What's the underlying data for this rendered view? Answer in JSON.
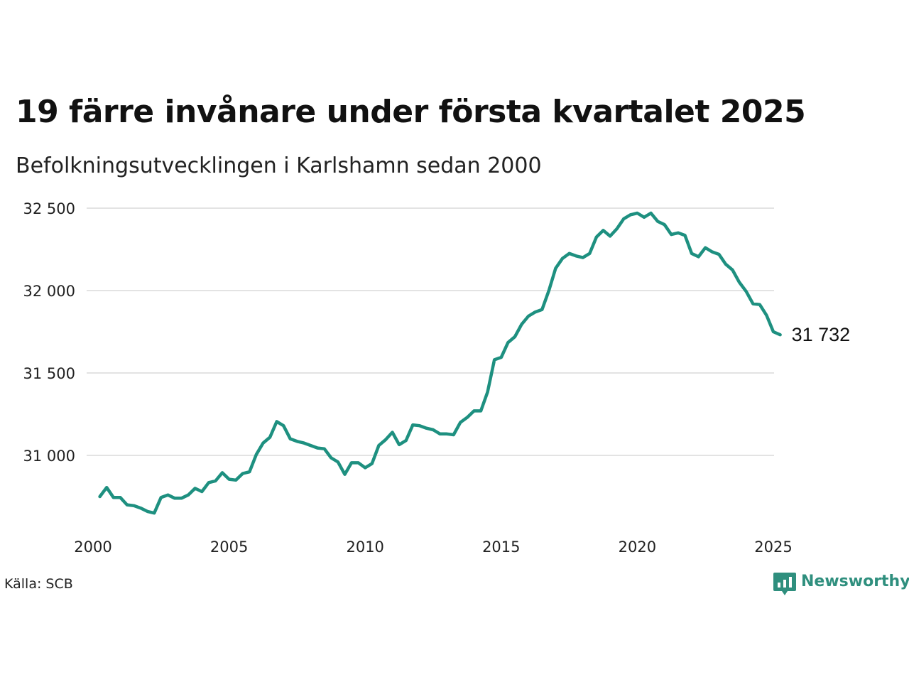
{
  "header": {
    "title": "19 färre invånare under första kvartalet 2025",
    "subtitle": "Befolkningsutvecklingen i Karlshamn sedan 2000"
  },
  "footer": {
    "source": "Källa: SCB",
    "brand": "Newsworthy",
    "brand_icon": "newsworthy-chart-icon",
    "brand_color": "#2f8f7e"
  },
  "chart_data": {
    "type": "line",
    "title": "19 färre invånare under första kvartalet 2025",
    "subtitle": "Befolkningsutvecklingen i Karlshamn sedan 2000",
    "xlabel": "",
    "ylabel": "",
    "x_ticks": [
      "2000",
      "2005",
      "2010",
      "2015",
      "2020",
      "2025"
    ],
    "y_ticks": [
      {
        "value": 31000,
        "label": "31 000"
      },
      {
        "value": 31500,
        "label": "31 500"
      },
      {
        "value": 32000,
        "label": "32 000"
      },
      {
        "value": 32500,
        "label": "32 500"
      }
    ],
    "xlim": [
      2000,
      2025
    ],
    "ylim": [
      30550,
      32600
    ],
    "grid": "horizontal",
    "legend": "none",
    "line_color": "#1e9080",
    "end_label": "31 732",
    "series": [
      {
        "values": [
          [
            2000.25,
            30750
          ],
          [
            2000.5,
            30805
          ],
          [
            2000.75,
            30745
          ],
          [
            2001.0,
            30745
          ],
          [
            2001.25,
            30700
          ],
          [
            2001.5,
            30695
          ],
          [
            2001.75,
            30680
          ],
          [
            2002.0,
            30660
          ],
          [
            2002.25,
            30650
          ],
          [
            2002.5,
            30745
          ],
          [
            2002.75,
            30760
          ],
          [
            2003.0,
            30740
          ],
          [
            2003.25,
            30740
          ],
          [
            2003.5,
            30760
          ],
          [
            2003.75,
            30800
          ],
          [
            2004.0,
            30780
          ],
          [
            2004.25,
            30835
          ],
          [
            2004.5,
            30845
          ],
          [
            2004.75,
            30895
          ],
          [
            2005.0,
            30855
          ],
          [
            2005.25,
            30850
          ],
          [
            2005.5,
            30890
          ],
          [
            2005.75,
            30900
          ],
          [
            2006.0,
            31005
          ],
          [
            2006.25,
            31075
          ],
          [
            2006.5,
            31110
          ],
          [
            2006.75,
            31205
          ],
          [
            2007.0,
            31180
          ],
          [
            2007.25,
            31100
          ],
          [
            2007.5,
            31085
          ],
          [
            2007.75,
            31075
          ],
          [
            2008.0,
            31060
          ],
          [
            2008.25,
            31045
          ],
          [
            2008.5,
            31040
          ],
          [
            2008.75,
            30985
          ],
          [
            2009.0,
            30960
          ],
          [
            2009.25,
            30885
          ],
          [
            2009.5,
            30955
          ],
          [
            2009.75,
            30955
          ],
          [
            2010.0,
            30925
          ],
          [
            2010.25,
            30950
          ],
          [
            2010.5,
            31060
          ],
          [
            2010.75,
            31095
          ],
          [
            2011.0,
            31140
          ],
          [
            2011.25,
            31065
          ],
          [
            2011.5,
            31090
          ],
          [
            2011.75,
            31185
          ],
          [
            2012.0,
            31180
          ],
          [
            2012.25,
            31165
          ],
          [
            2012.5,
            31155
          ],
          [
            2012.75,
            31130
          ],
          [
            2013.0,
            31130
          ],
          [
            2013.25,
            31125
          ],
          [
            2013.5,
            31200
          ],
          [
            2013.75,
            31230
          ],
          [
            2014.0,
            31270
          ],
          [
            2014.25,
            31270
          ],
          [
            2014.5,
            31385
          ],
          [
            2014.75,
            31580
          ],
          [
            2015.0,
            31595
          ],
          [
            2015.25,
            31685
          ],
          [
            2015.5,
            31720
          ],
          [
            2015.75,
            31795
          ],
          [
            2016.0,
            31845
          ],
          [
            2016.25,
            31870
          ],
          [
            2016.5,
            31885
          ],
          [
            2016.75,
            32000
          ],
          [
            2017.0,
            32135
          ],
          [
            2017.25,
            32195
          ],
          [
            2017.5,
            32225
          ],
          [
            2017.75,
            32210
          ],
          [
            2018.0,
            32200
          ],
          [
            2018.25,
            32225
          ],
          [
            2018.5,
            32325
          ],
          [
            2018.75,
            32365
          ],
          [
            2019.0,
            32330
          ],
          [
            2019.25,
            32375
          ],
          [
            2019.5,
            32435
          ],
          [
            2019.75,
            32460
          ],
          [
            2020.0,
            32470
          ],
          [
            2020.25,
            32445
          ],
          [
            2020.5,
            32470
          ],
          [
            2020.75,
            32420
          ],
          [
            2021.0,
            32400
          ],
          [
            2021.25,
            32340
          ],
          [
            2021.5,
            32350
          ],
          [
            2021.75,
            32335
          ],
          [
            2022.0,
            32225
          ],
          [
            2022.25,
            32205
          ],
          [
            2022.5,
            32260
          ],
          [
            2022.75,
            32235
          ],
          [
            2023.0,
            32220
          ],
          [
            2023.25,
            32160
          ],
          [
            2023.5,
            32125
          ],
          [
            2023.75,
            32050
          ],
          [
            2024.0,
            31995
          ],
          [
            2024.25,
            31920
          ],
          [
            2024.5,
            31915
          ],
          [
            2024.75,
            31850
          ],
          [
            2025.0,
            31750
          ],
          [
            2025.25,
            31732
          ]
        ]
      }
    ]
  }
}
